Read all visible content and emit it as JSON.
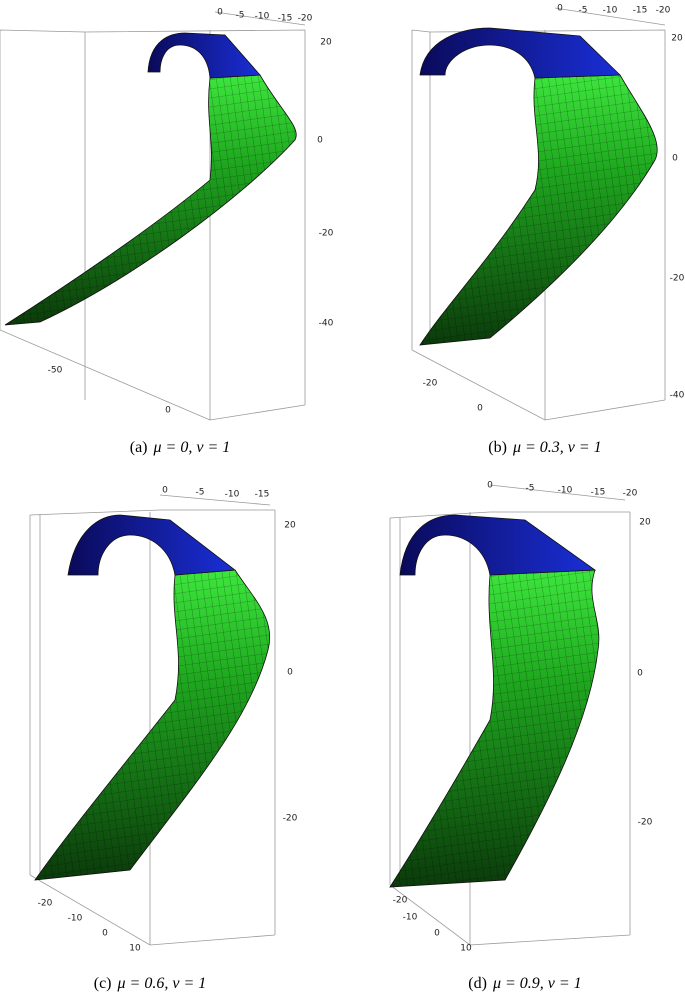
{
  "panels": [
    {
      "label": "(a)",
      "caption": "μ = 0, ν = 1",
      "top_ticks": [
        "0",
        "-5",
        "-10",
        "-15",
        "-20"
      ],
      "right_ticks": [
        "20",
        "0",
        "-20",
        "-40"
      ],
      "side_ticks": [
        "-50",
        "0"
      ]
    },
    {
      "label": "(b)",
      "caption": "μ = 0.3, ν = 1",
      "top_ticks": [
        "0",
        "-5",
        "-10",
        "-15",
        "-20"
      ],
      "right_ticks": [
        "20",
        "0",
        "-20",
        "-40"
      ],
      "side_ticks": [
        "-20",
        "0"
      ]
    },
    {
      "label": "(c)",
      "caption": "μ = 0.6, ν = 1",
      "top_ticks": [
        "0",
        "-5",
        "-10",
        "-15"
      ],
      "right_ticks": [
        "20",
        "0",
        "-20"
      ],
      "side_ticks": [
        "-20",
        "-10",
        "0",
        "10"
      ]
    },
    {
      "label": "(d)",
      "caption": "μ = 0.9, ν = 1",
      "top_ticks": [
        "0",
        "-5",
        "-10",
        "-15",
        "-20"
      ],
      "right_ticks": [
        "20",
        "0",
        "-20"
      ],
      "side_ticks": [
        "-20",
        "-10",
        "0",
        "10"
      ]
    }
  ]
}
